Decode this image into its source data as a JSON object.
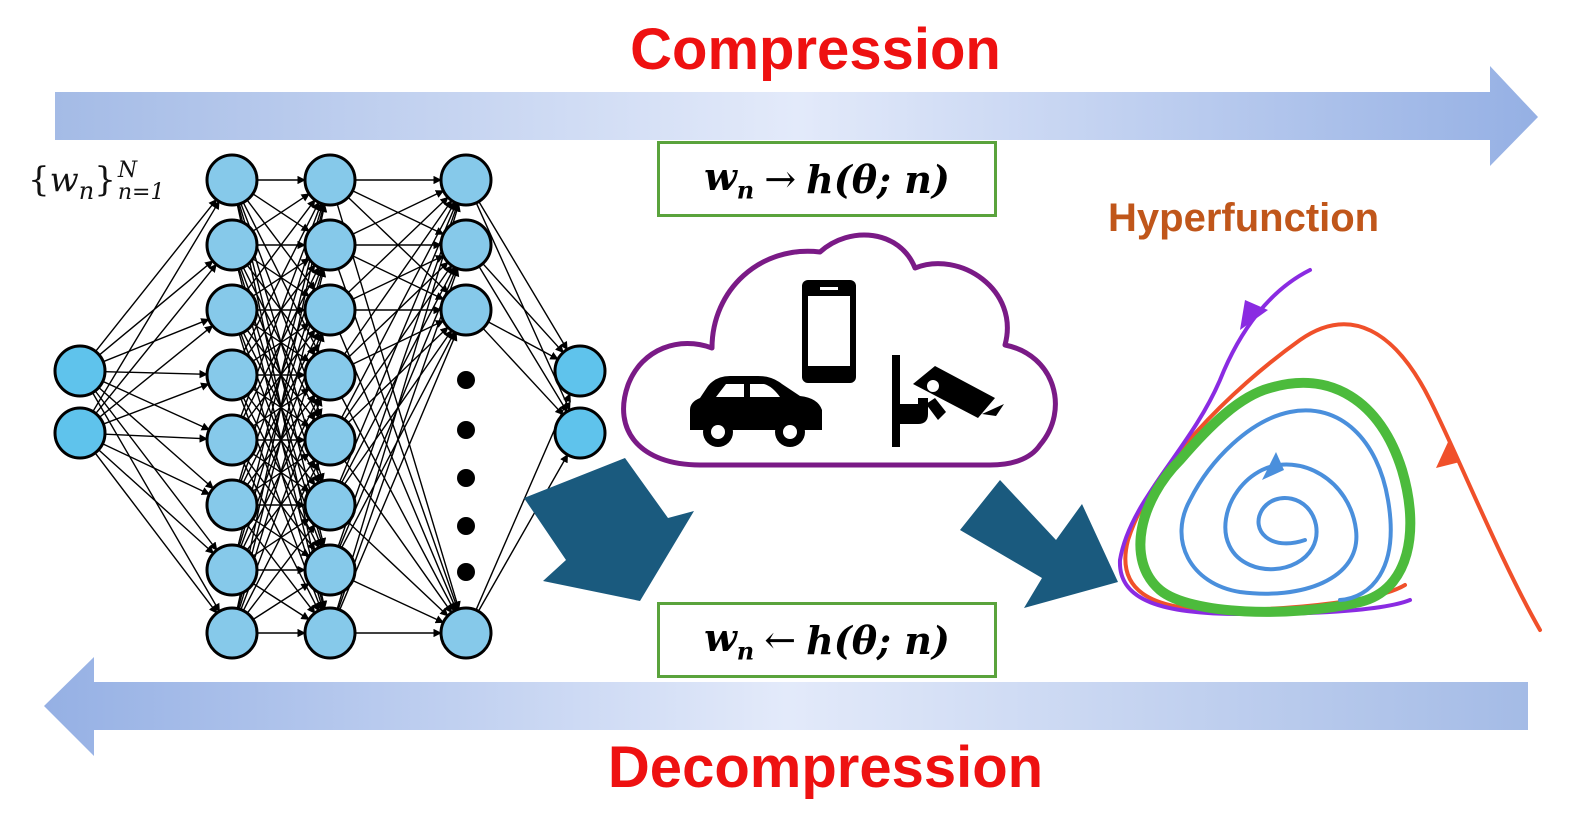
{
  "titles": {
    "compression": "Compression",
    "decompression": "Decompression",
    "hyperfunction": "Hyperfunction"
  },
  "set_notation": {
    "open": "{",
    "symbol": "w",
    "sub": "n",
    "close": "}",
    "superscript": "N",
    "subscript": "n=1"
  },
  "formula_top": {
    "w": "w",
    "sub": "n",
    "arrow": "→",
    "rhs": "h(θ; n)"
  },
  "formula_bottom": {
    "w": "w",
    "sub": "n",
    "arrow": "←",
    "rhs": "h(θ; n)"
  },
  "network": {
    "layers": [
      2,
      8,
      8,
      4,
      2
    ],
    "ellipsis_dots": 5
  },
  "icons": [
    "cloud-icon",
    "smartphone-icon",
    "car-icon",
    "security-camera-icon"
  ],
  "colors": {
    "title_red": "#ee1111",
    "hyper_orange": "#c0561a",
    "box_green": "#5aa33c",
    "node_fill": "#86c9ea",
    "node_fill_io": "#5fc3ec",
    "cloud_stroke": "#7a1a86",
    "teal_arrow": "#1a5a7e",
    "band_light": "#dfe7f8",
    "band_dark": "#9db6e6",
    "spiral_purple": "#8a2be2",
    "spiral_red": "#f0502a",
    "spiral_green": "#4cbb3c",
    "spiral_blue": "#4a8fdc"
  }
}
